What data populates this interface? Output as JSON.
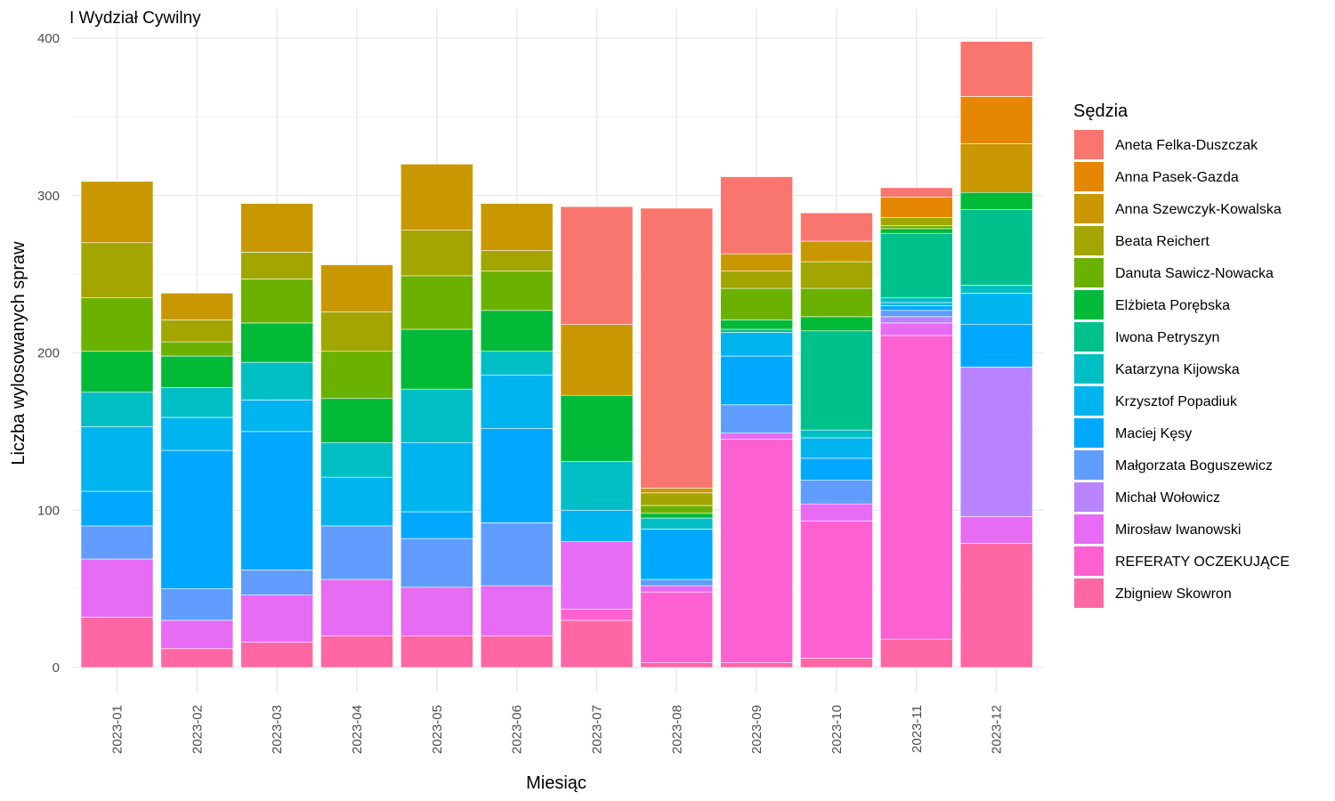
{
  "chart_data": {
    "type": "bar",
    "stacked": true,
    "title": "I Wydział Cywilny",
    "xlabel": "Miesiąc",
    "ylabel": "Liczba wylosowanych spraw",
    "ylim": [
      0,
      400
    ],
    "yticks": [
      0,
      100,
      200,
      300,
      400
    ],
    "grid": true,
    "legend_title": "Sędzia",
    "legend_position": "right",
    "categories": [
      "2023-01",
      "2023-02",
      "2023-03",
      "2023-04",
      "2023-05",
      "2023-06",
      "2023-07",
      "2023-08",
      "2023-09",
      "2023-10",
      "2023-11",
      "2023-12"
    ],
    "series": [
      {
        "name": "Aneta Felka-Duszczak",
        "color": "#F8766D",
        "values": [
          0,
          0,
          0,
          0,
          0,
          0,
          75,
          178,
          49,
          18,
          6,
          35
        ]
      },
      {
        "name": "Anna Pasek-Gazda",
        "color": "#E58700",
        "values": [
          0,
          0,
          0,
          0,
          0,
          0,
          0,
          0,
          0,
          0,
          13,
          30
        ]
      },
      {
        "name": "Anna Szewczyk-Kowalska",
        "color": "#C99800",
        "values": [
          39,
          17,
          31,
          30,
          42,
          30,
          45,
          3,
          11,
          13,
          0,
          31
        ]
      },
      {
        "name": "Beata Reichert",
        "color": "#A3A500",
        "values": [
          35,
          14,
          17,
          25,
          29,
          13,
          0,
          8,
          11,
          17,
          5,
          0
        ]
      },
      {
        "name": "Danuta Sawicz-Nowacka",
        "color": "#6BB100",
        "values": [
          34,
          9,
          28,
          30,
          34,
          25,
          0,
          5,
          20,
          18,
          2,
          0
        ]
      },
      {
        "name": "Elżbieta Porębska",
        "color": "#00BA38",
        "values": [
          26,
          20,
          25,
          28,
          38,
          26,
          42,
          3,
          6,
          9,
          3,
          11
        ]
      },
      {
        "name": "Iwona Petryszyn",
        "color": "#00C08B",
        "values": [
          0,
          0,
          0,
          0,
          0,
          0,
          0,
          0,
          2,
          63,
          41,
          48
        ]
      },
      {
        "name": "Katarzyna Kijowska",
        "color": "#00BFC4",
        "values": [
          22,
          19,
          24,
          22,
          34,
          15,
          31,
          7,
          0,
          5,
          3,
          5
        ]
      },
      {
        "name": "Krzysztof Popadiuk",
        "color": "#00B4F0",
        "values": [
          41,
          21,
          20,
          31,
          44,
          34,
          20,
          0,
          15,
          13,
          2,
          20
        ]
      },
      {
        "name": "Maciej Kęsy",
        "color": "#00A9FF",
        "values": [
          22,
          88,
          88,
          0,
          17,
          60,
          0,
          32,
          31,
          14,
          3,
          27
        ]
      },
      {
        "name": "Małgorzata Boguszewicz",
        "color": "#619CFF",
        "values": [
          21,
          20,
          16,
          34,
          31,
          40,
          0,
          4,
          18,
          15,
          4,
          0
        ]
      },
      {
        "name": "Michał Wołowicz",
        "color": "#B983FF",
        "values": [
          0,
          0,
          0,
          0,
          0,
          0,
          0,
          0,
          0,
          0,
          4,
          95
        ]
      },
      {
        "name": "Mirosław Iwanowski",
        "color": "#E76BF3",
        "values": [
          37,
          18,
          30,
          36,
          31,
          32,
          43,
          4,
          4,
          11,
          8,
          17
        ]
      },
      {
        "name": "REFERATY OCZEKUJĄCE",
        "color": "#FD61D1",
        "values": [
          0,
          0,
          0,
          0,
          0,
          0,
          7,
          45,
          142,
          87,
          193,
          0
        ]
      },
      {
        "name": "Zbigniew Skowron",
        "color": "#FF67A4",
        "values": [
          32,
          12,
          16,
          20,
          20,
          20,
          30,
          3,
          3,
          6,
          18,
          79
        ]
      }
    ]
  }
}
